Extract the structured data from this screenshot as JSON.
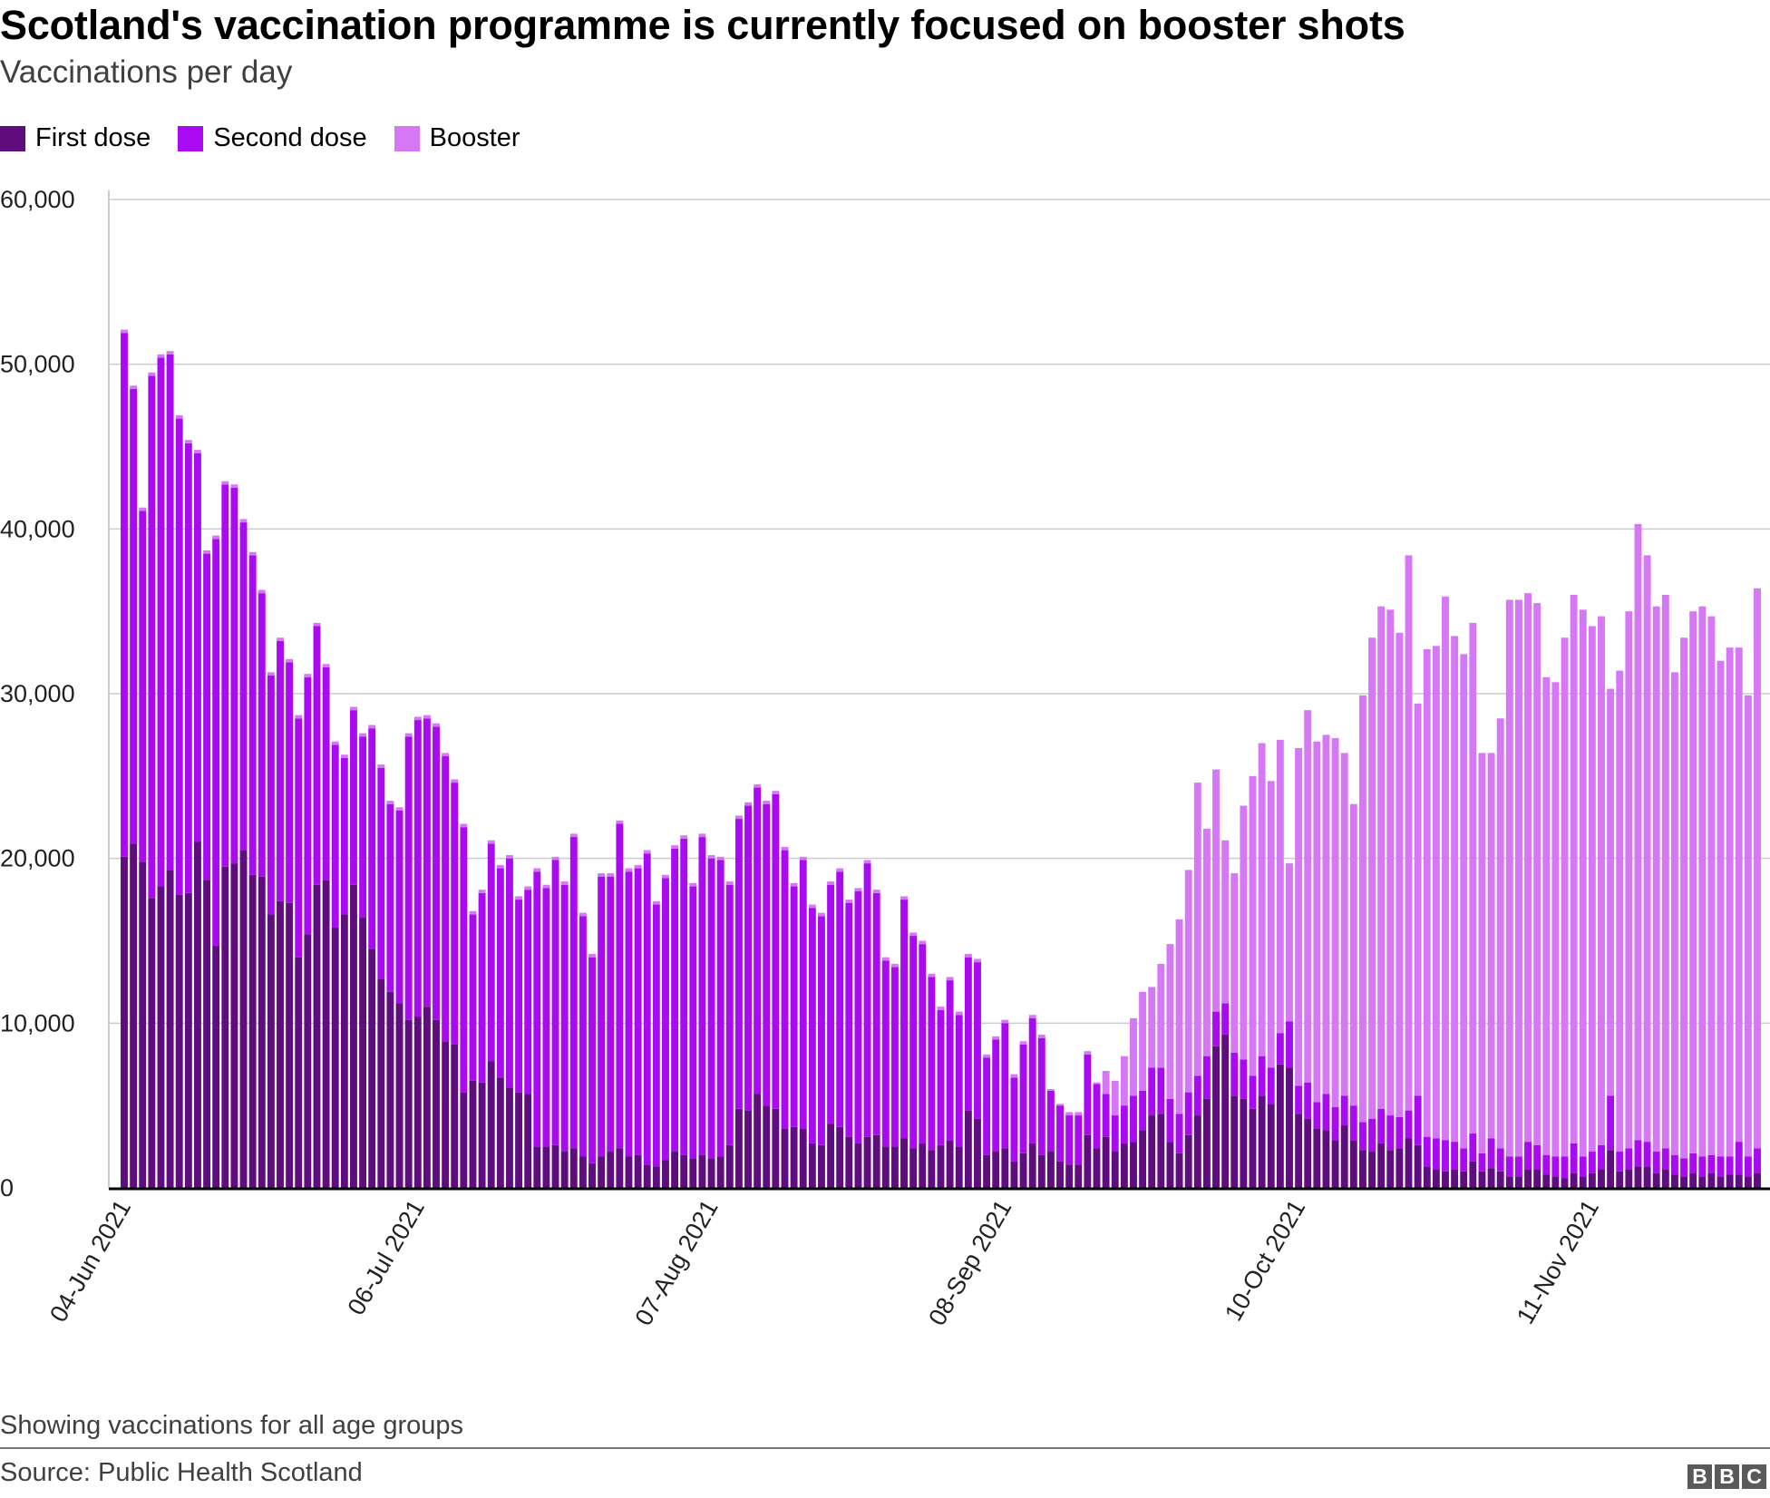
{
  "title": "Scotland's vaccination programme is currently focused on booster shots",
  "subtitle": "Vaccinations per day",
  "note": "Showing vaccinations for all age groups",
  "source": "Source: Public Health Scotland",
  "logo": {
    "letters": [
      "B",
      "B",
      "C"
    ]
  },
  "colors": {
    "first": "#5e0c7e",
    "second": "#aa0af2",
    "booster": "#d678f5",
    "grid": "#cccccc",
    "axis": "#000000"
  },
  "chart_data": {
    "type": "bar",
    "stacked": true,
    "title": "Scotland's vaccination programme is currently focused on booster shots",
    "subtitle": "Vaccinations per day",
    "ylim": [
      0,
      60000
    ],
    "grid": true,
    "legend_position": "top-left",
    "y_ticks": [
      {
        "value": 0,
        "label": "0"
      },
      {
        "value": 10000,
        "label": "10,000"
      },
      {
        "value": 20000,
        "label": "20,000"
      },
      {
        "value": 30000,
        "label": "30,000"
      },
      {
        "value": 40000,
        "label": "40,000"
      },
      {
        "value": 50000,
        "label": "50,000"
      },
      {
        "value": 60000,
        "label": "60,000"
      }
    ],
    "x_ticks": [
      {
        "date": "04-Jun",
        "label": "04-Jun 2021"
      },
      {
        "date": "06-Jul",
        "label": "06-Jul 2021"
      },
      {
        "date": "07-Aug",
        "label": "07-Aug 2021"
      },
      {
        "date": "08-Sep",
        "label": "08-Sep 2021"
      },
      {
        "date": "10-Oct",
        "label": "10-Oct 2021"
      },
      {
        "date": "11-Nov",
        "label": "11-Nov 2021"
      }
    ],
    "categories": [
      "04-Jun",
      "05-Jun",
      "06-Jun",
      "07-Jun",
      "08-Jun",
      "09-Jun",
      "10-Jun",
      "11-Jun",
      "12-Jun",
      "13-Jun",
      "14-Jun",
      "15-Jun",
      "16-Jun",
      "17-Jun",
      "18-Jun",
      "19-Jun",
      "20-Jun",
      "21-Jun",
      "22-Jun",
      "23-Jun",
      "24-Jun",
      "25-Jun",
      "26-Jun",
      "27-Jun",
      "28-Jun",
      "29-Jun",
      "30-Jun",
      "01-Jul",
      "02-Jul",
      "03-Jul",
      "04-Jul",
      "05-Jul",
      "06-Jul",
      "07-Jul",
      "08-Jul",
      "09-Jul",
      "10-Jul",
      "11-Jul",
      "12-Jul",
      "13-Jul",
      "14-Jul",
      "15-Jul",
      "16-Jul",
      "17-Jul",
      "18-Jul",
      "19-Jul",
      "20-Jul",
      "21-Jul",
      "22-Jul",
      "23-Jul",
      "24-Jul",
      "25-Jul",
      "26-Jul",
      "27-Jul",
      "28-Jul",
      "29-Jul",
      "30-Jul",
      "31-Jul",
      "01-Aug",
      "02-Aug",
      "03-Aug",
      "04-Aug",
      "05-Aug",
      "06-Aug",
      "07-Aug",
      "08-Aug",
      "09-Aug",
      "10-Aug",
      "11-Aug",
      "12-Aug",
      "13-Aug",
      "14-Aug",
      "15-Aug",
      "16-Aug",
      "17-Aug",
      "18-Aug",
      "19-Aug",
      "20-Aug",
      "21-Aug",
      "22-Aug",
      "23-Aug",
      "24-Aug",
      "25-Aug",
      "26-Aug",
      "27-Aug",
      "28-Aug",
      "29-Aug",
      "30-Aug",
      "31-Aug",
      "01-Sep",
      "02-Sep",
      "03-Sep",
      "04-Sep",
      "05-Sep",
      "06-Sep",
      "07-Sep",
      "08-Sep",
      "09-Sep",
      "10-Sep",
      "11-Sep",
      "12-Sep",
      "13-Sep",
      "14-Sep",
      "15-Sep",
      "16-Sep",
      "17-Sep",
      "18-Sep",
      "19-Sep",
      "20-Sep",
      "21-Sep",
      "22-Sep",
      "23-Sep",
      "24-Sep",
      "25-Sep",
      "26-Sep",
      "27-Sep",
      "28-Sep",
      "29-Sep",
      "30-Sep",
      "01-Oct",
      "02-Oct",
      "03-Oct",
      "04-Oct",
      "05-Oct",
      "06-Oct",
      "07-Oct",
      "08-Oct",
      "09-Oct",
      "10-Oct",
      "11-Oct",
      "12-Oct",
      "13-Oct",
      "14-Oct",
      "15-Oct",
      "16-Oct",
      "17-Oct",
      "18-Oct",
      "19-Oct",
      "20-Oct",
      "21-Oct",
      "22-Oct",
      "23-Oct",
      "24-Oct",
      "25-Oct",
      "26-Oct",
      "27-Oct",
      "28-Oct",
      "29-Oct",
      "30-Oct",
      "31-Oct",
      "01-Nov",
      "02-Nov",
      "03-Nov",
      "04-Nov",
      "05-Nov",
      "06-Nov",
      "07-Nov",
      "08-Nov",
      "09-Nov",
      "10-Nov",
      "11-Nov",
      "12-Nov",
      "13-Nov",
      "14-Nov",
      "15-Nov",
      "16-Nov",
      "17-Nov",
      "18-Nov",
      "19-Nov",
      "20-Nov",
      "21-Nov",
      "22-Nov",
      "23-Nov",
      "24-Nov",
      "25-Nov",
      "26-Nov",
      "27-Nov",
      "28-Nov",
      "29-Nov"
    ],
    "series": [
      {
        "name": "First dose",
        "key": "first",
        "values": [
          20100,
          20900,
          19800,
          17600,
          18300,
          19300,
          17800,
          17900,
          21000,
          18700,
          14700,
          19500,
          19700,
          20500,
          19000,
          18900,
          16600,
          17400,
          17300,
          14000,
          15400,
          18400,
          18700,
          15800,
          16600,
          18400,
          16400,
          14500,
          12700,
          11900,
          11200,
          10200,
          10400,
          11000,
          10200,
          8900,
          8700,
          5800,
          6500,
          6400,
          7700,
          6700,
          6100,
          5800,
          5700,
          2500,
          2500,
          2600,
          2200,
          2400,
          1900,
          1500,
          1900,
          2200,
          2400,
          1900,
          2000,
          1400,
          1300,
          1700,
          2200,
          2000,
          1800,
          2000,
          1800,
          1900,
          2600,
          4800,
          4700,
          5700,
          5000,
          4800,
          3600,
          3700,
          3600,
          2700,
          2600,
          3900,
          3700,
          3100,
          2700,
          3100,
          3200,
          2500,
          2500,
          3000,
          2400,
          2700,
          2300,
          2600,
          2900,
          2500,
          4700,
          4200,
          2000,
          2200,
          2400,
          1600,
          2100,
          2700,
          2000,
          2200,
          1600,
          1400,
          1400,
          3200,
          2400,
          3100,
          2200,
          2700,
          2800,
          3500,
          4400,
          4500,
          2800,
          2100,
          3200,
          4400,
          5400,
          8600,
          9300,
          5600,
          5400,
          4800,
          5600,
          5100,
          7500,
          7300,
          4500,
          4200,
          3600,
          3500,
          2900,
          3800,
          2900,
          2300,
          2200,
          2700,
          2300,
          2400,
          3000,
          2600,
          1300,
          1100,
          1000,
          1100,
          1000,
          1600,
          1000,
          1200,
          1000,
          700,
          700,
          1100,
          1100,
          800,
          700,
          600,
          900,
          700,
          900,
          1100,
          2300,
          1000,
          1100,
          1300,
          1300,
          900,
          1100,
          800,
          700,
          900,
          700,
          900,
          700,
          800,
          800,
          700,
          900
        ]
      },
      {
        "name": "Second dose",
        "key": "second",
        "values": [
          31800,
          27600,
          21300,
          31700,
          32100,
          31300,
          28900,
          27300,
          23600,
          19800,
          24700,
          23200,
          22800,
          19900,
          19400,
          17200,
          14500,
          15800,
          14600,
          14500,
          15600,
          15700,
          12900,
          11100,
          9500,
          10600,
          11000,
          13400,
          12800,
          11400,
          11700,
          17200,
          18000,
          17500,
          17800,
          17300,
          15900,
          16100,
          10100,
          11500,
          13200,
          12700,
          13900,
          11700,
          12400,
          16700,
          15700,
          17300,
          16200,
          18900,
          14600,
          12500,
          17000,
          16700,
          19700,
          17300,
          17400,
          18900,
          15900,
          17100,
          18400,
          19200,
          16500,
          19300,
          18200,
          18000,
          15800,
          17600,
          18500,
          18600,
          18300,
          19100,
          16900,
          14600,
          16300,
          14300,
          13900,
          14500,
          15500,
          14200,
          15300,
          16600,
          14700,
          11300,
          10900,
          14500,
          12900,
          12100,
          10500,
          8200,
          9700,
          8000,
          9300,
          9500,
          5900,
          6800,
          7600,
          5100,
          6600,
          7600,
          7100,
          3700,
          3400,
          3000,
          3000,
          4900,
          3900,
          2600,
          2200,
          2300,
          2800,
          2400,
          2900,
          2800,
          2600,
          2400,
          2600,
          2400,
          2600,
          2100,
          1900,
          2600,
          2400,
          2000,
          2400,
          2200,
          1900,
          2800,
          1700,
          2200,
          1600,
          2200,
          2000,
          1800,
          2100,
          1700,
          2000,
          2100,
          2100,
          1900,
          1700,
          3000,
          1800,
          1900,
          1900,
          1700,
          1400,
          1700,
          1100,
          1800,
          1400,
          1200,
          1200,
          1700,
          1500,
          1200,
          1200,
          1300,
          1800,
          1200,
          1300,
          1500,
          3300,
          1200,
          1300,
          1600,
          1500,
          1300,
          1300,
          1200,
          1100,
          1200,
          1200,
          1100,
          1200,
          1100,
          2000,
          1200,
          1500
        ]
      },
      {
        "name": "Booster",
        "key": "booster",
        "values": [
          200,
          200,
          200,
          200,
          200,
          200,
          200,
          200,
          200,
          200,
          200,
          200,
          200,
          200,
          200,
          200,
          200,
          200,
          200,
          200,
          200,
          200,
          200,
          200,
          200,
          200,
          200,
          200,
          200,
          200,
          200,
          200,
          200,
          200,
          200,
          200,
          200,
          200,
          200,
          200,
          200,
          200,
          200,
          200,
          200,
          200,
          200,
          200,
          200,
          200,
          200,
          200,
          200,
          200,
          200,
          200,
          200,
          200,
          200,
          200,
          200,
          200,
          200,
          200,
          200,
          200,
          200,
          200,
          200,
          200,
          200,
          200,
          200,
          200,
          200,
          200,
          200,
          200,
          200,
          200,
          200,
          200,
          200,
          200,
          200,
          200,
          200,
          200,
          200,
          200,
          200,
          200,
          200,
          200,
          200,
          200,
          200,
          200,
          200,
          200,
          200,
          100,
          100,
          200,
          200,
          200,
          100,
          1400,
          2100,
          3000,
          4700,
          6000,
          4900,
          6300,
          9400,
          11800,
          13500,
          17800,
          13800,
          14700,
          9900,
          10900,
          15400,
          18200,
          19000,
          17400,
          17800,
          9600,
          20500,
          22600,
          21900,
          21800,
          22400,
          20800,
          18300,
          25900,
          29200,
          30500,
          30700,
          29400,
          33700,
          23800,
          29600,
          29900,
          33000,
          30700,
          30000,
          31000,
          24300,
          23400,
          26100,
          33800,
          33800,
          33300,
          32900,
          29000,
          28800,
          31500,
          33300,
          33200,
          31900,
          32100,
          24700,
          29200,
          32600,
          37400,
          35600,
          33100,
          33600,
          29300,
          31600,
          32900,
          33400,
          32700,
          30100,
          30900,
          30000,
          28000,
          34000
        ]
      }
    ]
  }
}
